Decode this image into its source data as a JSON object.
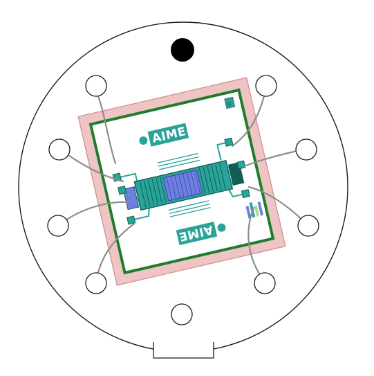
{
  "logos": {
    "top_text": "AIME",
    "bottom_text": "AIME"
  },
  "colors": {
    "package_outline": "#1a1a1a",
    "substrate_fill": "#efc4c4",
    "substrate_edge": "#d88f8f",
    "chip_border": "#1e7d2a",
    "teal": "#2aa39a",
    "dark_teal": "#0f5e58",
    "sensor_blue": "#6f7fe0",
    "wire": "#8c8c8c",
    "indexing_hole": "#000000"
  },
  "icons": [
    "pin-icon",
    "indexing-hole-icon",
    "logo-mark-icon",
    "bond-pad-icon",
    "alignment-mark-icon"
  ]
}
